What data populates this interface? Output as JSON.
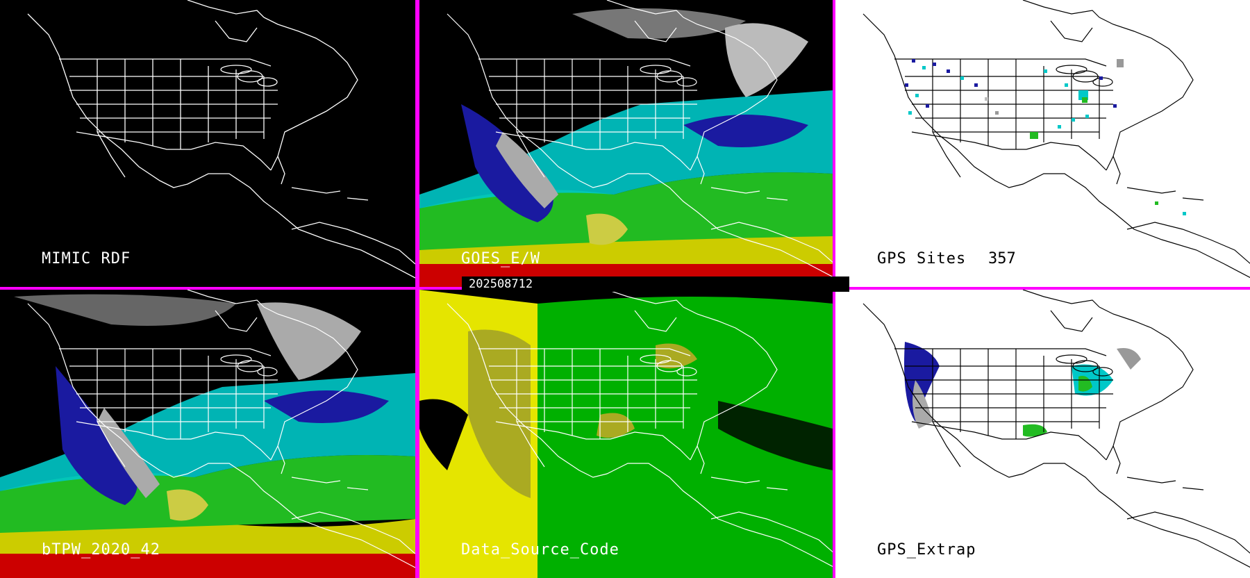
{
  "panels": {
    "mimic_rdf": {
      "label": "MIMIC RDF"
    },
    "goes": {
      "label": "GOES_E/W"
    },
    "gps_sites": {
      "label": "GPS Sites",
      "count": "357"
    },
    "btpw": {
      "label": "bTPW_2020_42"
    },
    "data_source": {
      "label": "Data_Source_Code"
    },
    "gps_extrap": {
      "label": "GPS_Extrap"
    }
  },
  "timestamp": "202508712",
  "colors": {
    "divider": "#ff00ff",
    "dark_bg": "#000000",
    "light_bg": "#ffffff",
    "map_lines_dark": "#ffffff",
    "map_lines_light": "#000000",
    "moisture_low": "#ffffff",
    "moisture_mid_low": "#1a1aa0",
    "moisture_mid": "#00e5e5",
    "moisture_mid_high": "#22bb22",
    "moisture_high": "#cccc00",
    "moisture_very_high": "#cc0000",
    "source_yellow": "#e5e500",
    "source_green": "#00b000"
  }
}
